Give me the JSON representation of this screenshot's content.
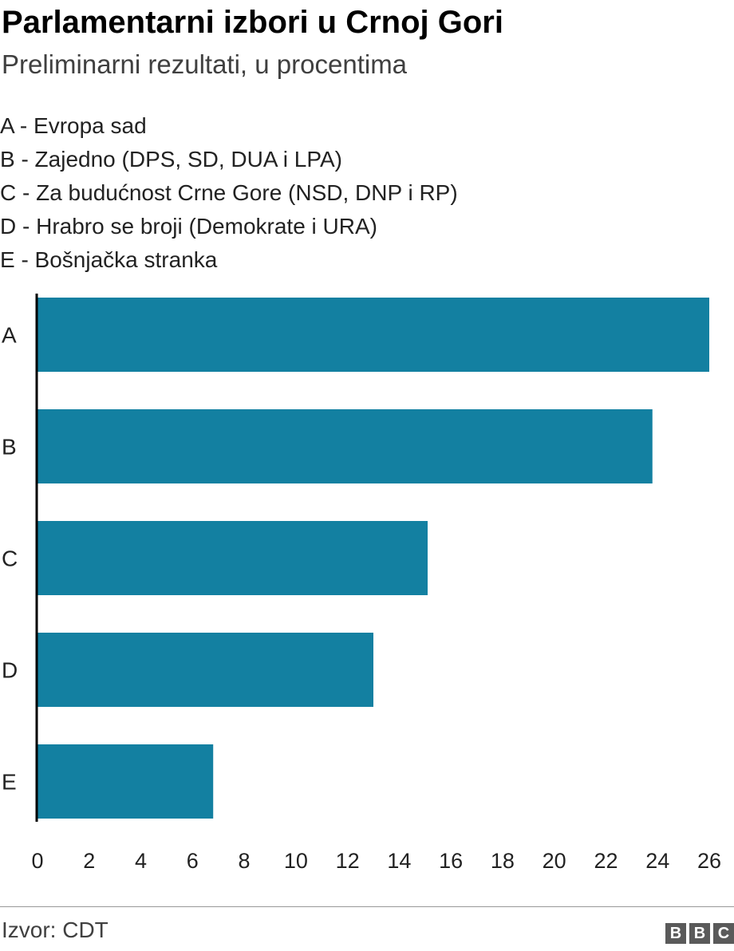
{
  "title": "Parlamentarni izbori u Crnoj Gori",
  "subtitle": "Preliminarni rezultati, u procentima",
  "legend": [
    "A - Evropa sad",
    "B - Zajedno (DPS, SD, DUA i LPA)",
    "C - Za budućnost Crne Gore (NSD, DNP i RP)",
    "D - Hrabro se broji (Demokrate i URA)",
    "E - Bošnjačka stranka"
  ],
  "chart_data": {
    "type": "bar",
    "orientation": "horizontal",
    "categories": [
      "A",
      "B",
      "C",
      "D",
      "E"
    ],
    "values": [
      26.0,
      23.8,
      15.1,
      13.0,
      6.8
    ],
    "xlim": [
      0,
      26
    ],
    "xticks": [
      0,
      2,
      4,
      6,
      8,
      10,
      12,
      14,
      16,
      18,
      20,
      22,
      24,
      26
    ],
    "bar_color": "#1380a1",
    "axis_color": "#000000"
  },
  "source": "Izvor: CDT",
  "logo": [
    "B",
    "B",
    "C"
  ]
}
